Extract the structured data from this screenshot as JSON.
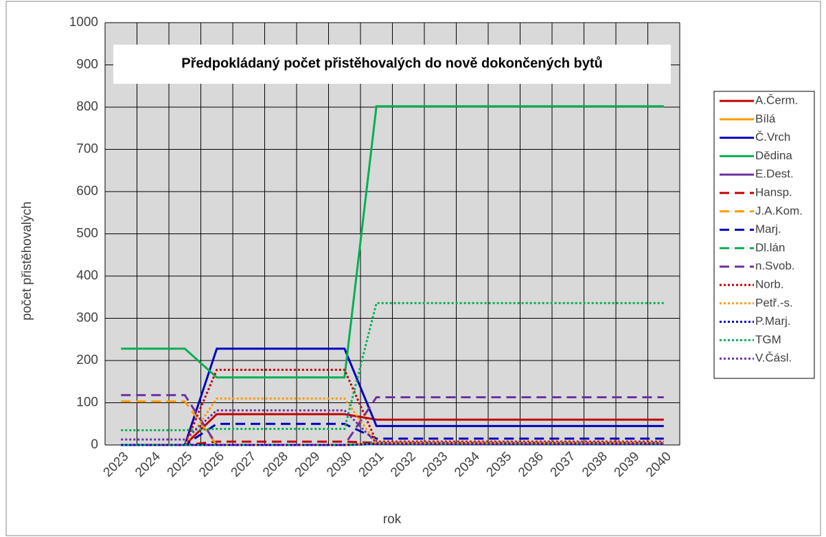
{
  "chart_data": {
    "type": "line",
    "title": "Předpokládaný počet přistěhovalých do nově dokončených bytů",
    "y_label": "počet přistěhovalých",
    "x_label": "rok",
    "categories": [
      "2023",
      "2024",
      "2025",
      "2026",
      "2027",
      "2028",
      "2029",
      "2030",
      "2031",
      "2032",
      "2033",
      "2034",
      "2035",
      "2036",
      "2037",
      "2038",
      "2039",
      "2040"
    ],
    "ylim": [
      0,
      1000
    ],
    "yticks": [
      0,
      100,
      200,
      300,
      400,
      500,
      600,
      700,
      800,
      900,
      1000
    ],
    "grid": true,
    "legend": "right",
    "series": [
      {
        "name": "A.Čerm.",
        "color": "#c00000",
        "style": "solid",
        "values": [
          0,
          0,
          0,
          73,
          73,
          73,
          73,
          73,
          60,
          60,
          60,
          60,
          60,
          60,
          60,
          60,
          60,
          60
        ]
      },
      {
        "name": "Bílá",
        "color": "#ff9900",
        "style": "solid",
        "values": [
          0,
          0,
          0,
          0,
          0,
          0,
          0,
          0,
          3,
          3,
          3,
          3,
          3,
          3,
          3,
          3,
          3,
          3
        ]
      },
      {
        "name": "Č.Vrch",
        "color": "#0000c0",
        "style": "solid",
        "values": [
          0,
          0,
          0,
          228,
          228,
          228,
          228,
          228,
          45,
          45,
          45,
          45,
          45,
          45,
          45,
          45,
          45,
          45
        ]
      },
      {
        "name": "Dědina",
        "color": "#00b050",
        "style": "solid",
        "values": [
          228,
          228,
          228,
          160,
          160,
          160,
          160,
          160,
          802,
          802,
          802,
          802,
          802,
          802,
          802,
          802,
          802,
          802
        ]
      },
      {
        "name": "E.Dest.",
        "color": "#7030a0",
        "style": "solid",
        "values": [
          0,
          0,
          0,
          0,
          0,
          0,
          0,
          0,
          2,
          2,
          2,
          2,
          2,
          2,
          2,
          2,
          2,
          2
        ]
      },
      {
        "name": "Hansp.",
        "color": "#c00000",
        "style": "dashed",
        "values": [
          0,
          0,
          0,
          8,
          8,
          8,
          8,
          8,
          5,
          5,
          5,
          5,
          5,
          5,
          5,
          5,
          5,
          5
        ]
      },
      {
        "name": "J.A.Kom.",
        "color": "#ff9900",
        "style": "dashed",
        "values": [
          103,
          103,
          103,
          0,
          0,
          0,
          0,
          0,
          5,
          5,
          5,
          5,
          5,
          5,
          5,
          5,
          5,
          5
        ]
      },
      {
        "name": "Marj.",
        "color": "#0000c0",
        "style": "dashed",
        "values": [
          0,
          0,
          0,
          50,
          50,
          50,
          50,
          50,
          15,
          15,
          15,
          15,
          15,
          15,
          15,
          15,
          15,
          15
        ]
      },
      {
        "name": "Dl.lán",
        "color": "#00b050",
        "style": "dashed",
        "values": [
          0,
          0,
          0,
          0,
          0,
          0,
          0,
          0,
          3,
          3,
          3,
          3,
          3,
          3,
          3,
          3,
          3,
          3
        ]
      },
      {
        "name": "n.Svob.",
        "color": "#7030a0",
        "style": "dashed",
        "values": [
          118,
          118,
          118,
          0,
          0,
          0,
          0,
          0,
          113,
          113,
          113,
          113,
          113,
          113,
          113,
          113,
          113,
          113
        ]
      },
      {
        "name": "Norb.",
        "color": "#c00000",
        "style": "dotted",
        "values": [
          0,
          0,
          0,
          178,
          178,
          178,
          178,
          178,
          8,
          8,
          8,
          8,
          8,
          8,
          8,
          8,
          8,
          8
        ]
      },
      {
        "name": "Petř.-s.",
        "color": "#ff9900",
        "style": "dotted",
        "values": [
          0,
          0,
          0,
          110,
          110,
          110,
          110,
          110,
          5,
          5,
          5,
          5,
          5,
          5,
          5,
          5,
          5,
          5
        ]
      },
      {
        "name": "P.Marj.",
        "color": "#0000c0",
        "style": "dotted",
        "values": [
          0,
          0,
          0,
          0,
          0,
          0,
          0,
          0,
          3,
          3,
          3,
          3,
          3,
          3,
          3,
          3,
          3,
          3
        ]
      },
      {
        "name": "TGM",
        "color": "#00b050",
        "style": "dotted",
        "values": [
          35,
          35,
          35,
          38,
          38,
          38,
          38,
          38,
          336,
          336,
          336,
          336,
          336,
          336,
          336,
          336,
          336,
          336
        ]
      },
      {
        "name": "V.Čásl.",
        "color": "#7030a0",
        "style": "dotted",
        "values": [
          13,
          13,
          13,
          82,
          82,
          82,
          82,
          82,
          5,
          5,
          5,
          5,
          5,
          5,
          5,
          5,
          5,
          5
        ]
      }
    ]
  }
}
